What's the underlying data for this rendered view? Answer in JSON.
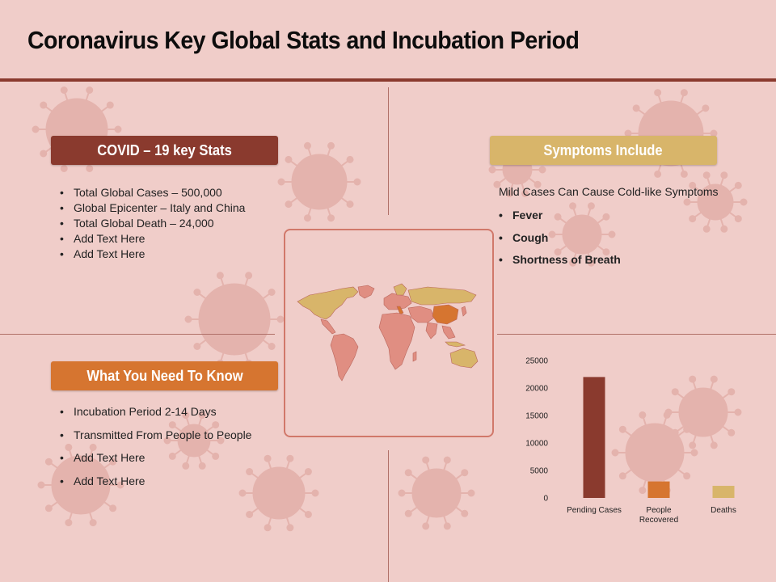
{
  "page": {
    "title": "Coronavirus Key Global Stats and Incubation Period"
  },
  "colors": {
    "background": "#f0cdc9",
    "dark_red": "#8a3a2e",
    "orange": "#d67530",
    "gold": "#d8b56a",
    "title_rule": "#8a3a2e"
  },
  "stats": {
    "label": "COVID – 19 key Stats",
    "items": [
      "Total Global Cases – 500,000",
      "Global Epicenter – Italy and China",
      "Total Global Death – 24,000",
      "Add Text Here",
      "Add Text Here"
    ]
  },
  "symptoms": {
    "label": "Symptoms Include",
    "intro": "Mild Cases Can Cause Cold-like Symptoms",
    "items": [
      "Fever",
      "Cough",
      "Shortness of Breath"
    ]
  },
  "know": {
    "label": "What You Need To Know",
    "items": [
      "Incubation Period 2-14 Days",
      "Transmitted From People to People",
      "Add Text Here",
      "Add Text Here"
    ]
  },
  "map": {
    "icon": "world-map-icon",
    "highlight_colors": [
      "#d8b56a",
      "#d67530",
      "#e08e82"
    ]
  },
  "chart_data": {
    "type": "bar",
    "categories": [
      "Pending Cases",
      "People Recovered",
      "Deaths"
    ],
    "category_lines": [
      [
        "Pending Cases"
      ],
      [
        "People",
        "Recovered"
      ],
      [
        "Deaths"
      ]
    ],
    "values": [
      22000,
      3000,
      2200
    ],
    "colors": [
      "#8a3a2e",
      "#d67530",
      "#d8b56a"
    ],
    "yticks": [
      0,
      5000,
      10000,
      15000,
      20000,
      25000
    ],
    "ylim": [
      0,
      25000
    ],
    "grid": false,
    "legend": "none"
  }
}
